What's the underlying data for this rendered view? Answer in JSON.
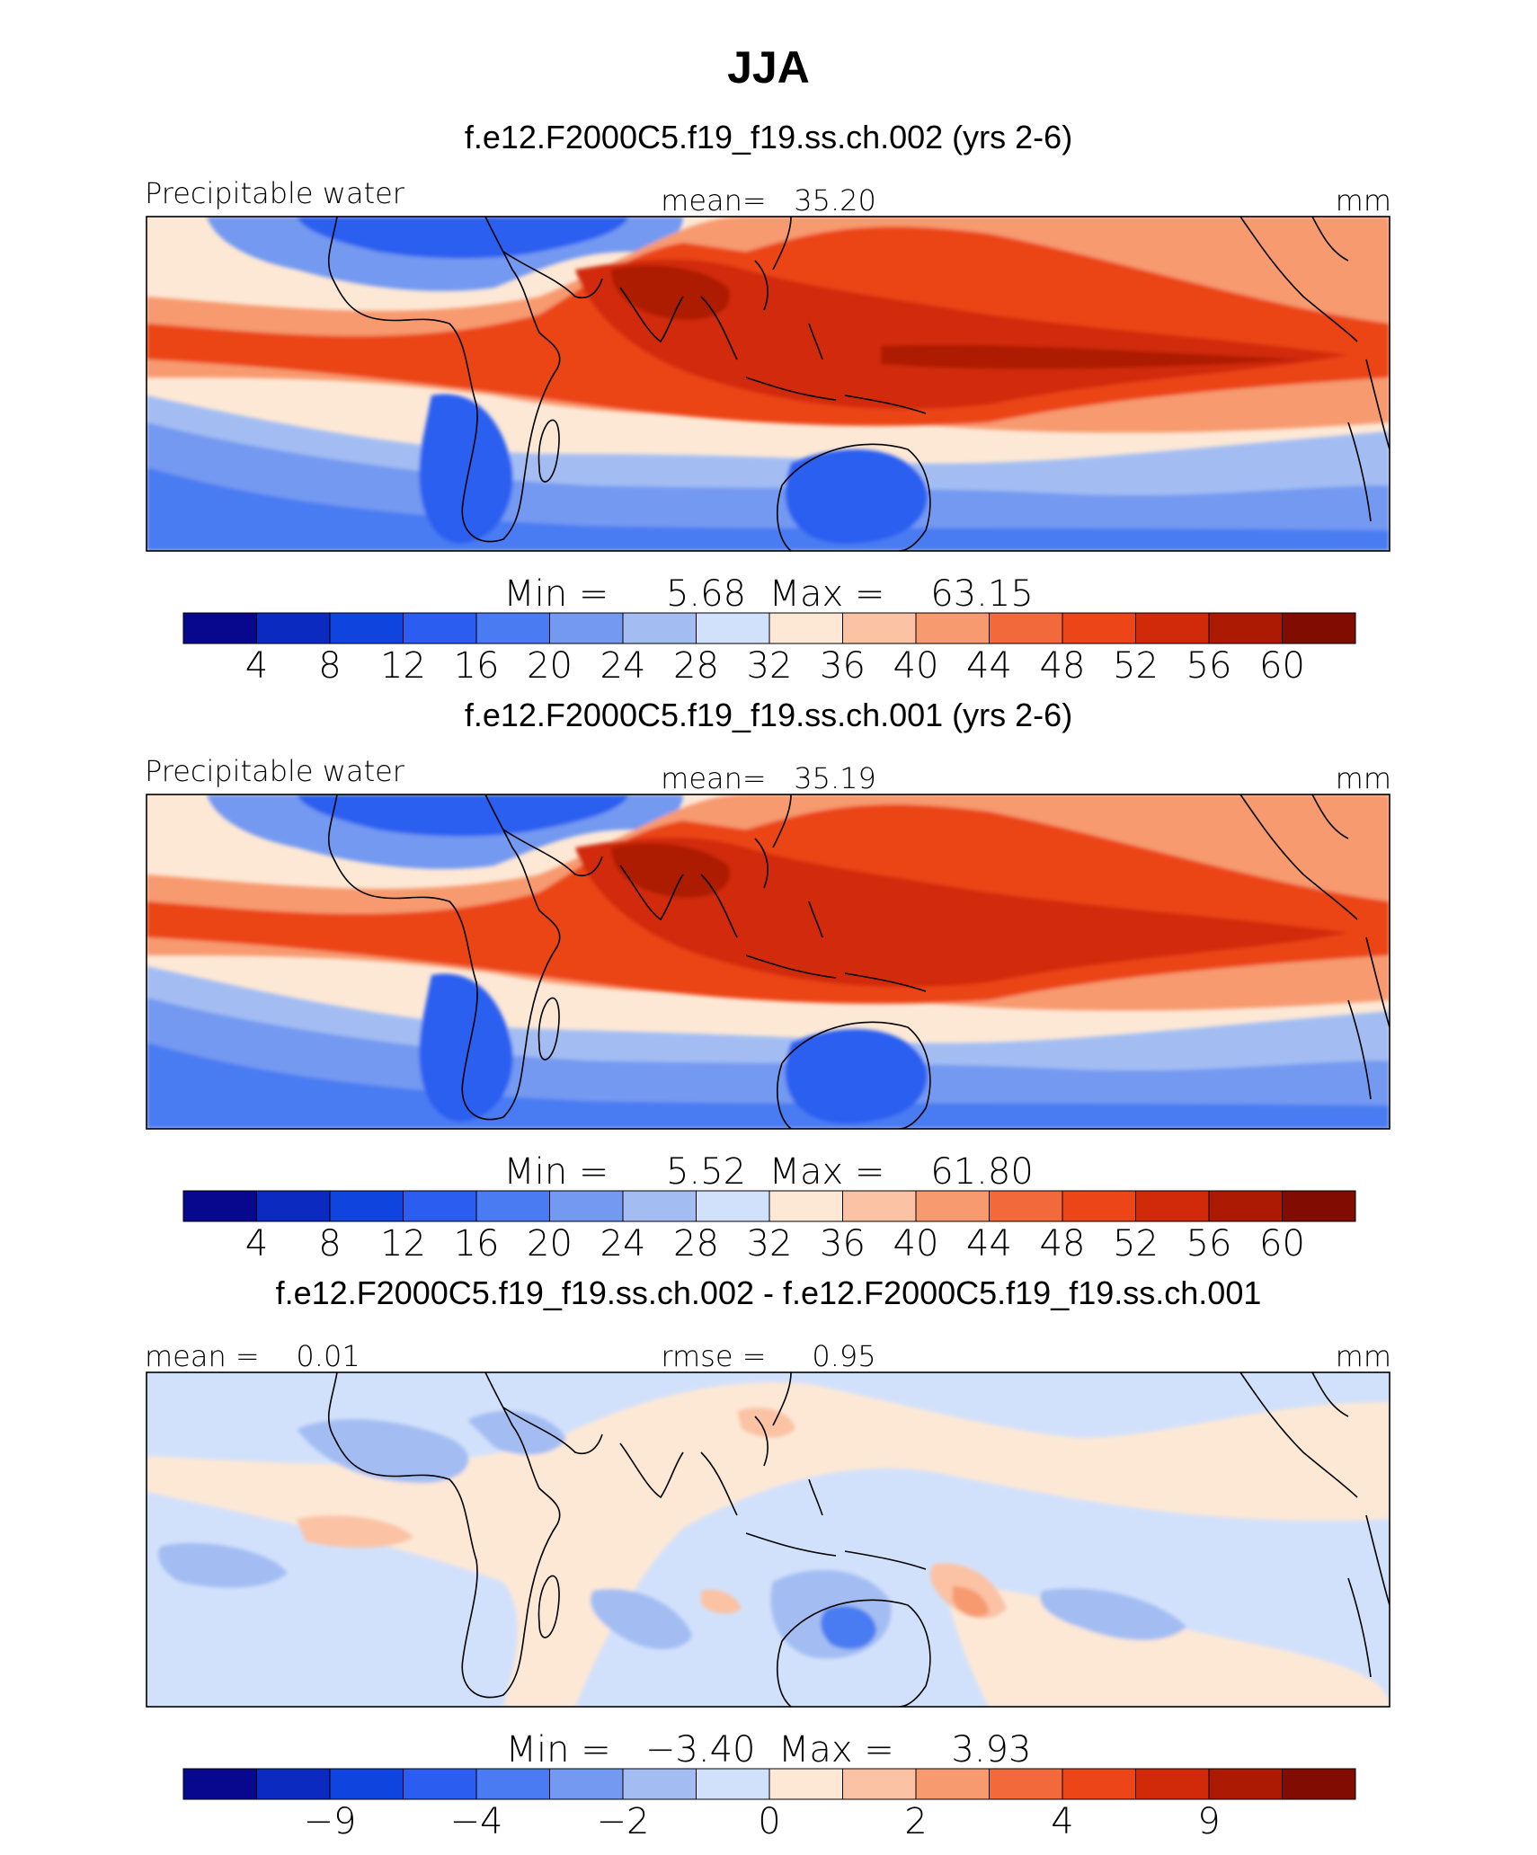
{
  "page": {
    "season_title": "JJA"
  },
  "colors": {
    "palette_13": [
      "#08088e",
      "#0b2bc0",
      "#0f45de",
      "#2b5ef0",
      "#4a7bf2",
      "#7399f1",
      "#a3bdf3",
      "#d2e1fb",
      "#fde8d6",
      "#fbc2a4",
      "#f79a6f",
      "#f26a3b",
      "#eb4518",
      "#d12a0a",
      "#ad1a04",
      "#810d02"
    ],
    "palette_diff": [
      "#08088e",
      "#0b2bc0",
      "#0f45de",
      "#2b5ef0",
      "#4a7bf2",
      "#7399f1",
      "#a3bdf3",
      "#d2e1fb",
      "#fde8d6",
      "#fbc2a4",
      "#f79a6f",
      "#f26a3b",
      "#eb4518",
      "#d12a0a",
      "#ad1a04",
      "#810d02"
    ],
    "coast": "#000000"
  },
  "chart_data": [
    {
      "type": "heatmap",
      "title": "f.e12.F2000C5.f19_f19.ss.ch.002 (yrs 2-6)",
      "left_label": "Precipitable water",
      "center_label": "mean=   35.20",
      "right_label": "mm",
      "min_max_label": "Min =     5.68  Max =    63.15",
      "min": 5.68,
      "max": 63.15,
      "mean": 35.2,
      "units": "mm",
      "colorbar_ticks": [
        "4",
        "8",
        "12",
        "16",
        "20",
        "24",
        "28",
        "32",
        "36",
        "40",
        "44",
        "48",
        "52",
        "56",
        "60"
      ],
      "levels": [
        4,
        8,
        12,
        16,
        20,
        24,
        28,
        32,
        36,
        40,
        44,
        48,
        52,
        56,
        60
      ]
    },
    {
      "type": "heatmap",
      "title": "f.e12.F2000C5.f19_f19.ss.ch.001 (yrs 2-6)",
      "left_label": "Precipitable water",
      "center_label": "mean=   35.19",
      "right_label": "mm",
      "min_max_label": "Min =     5.52  Max =    61.80",
      "min": 5.52,
      "max": 61.8,
      "mean": 35.19,
      "units": "mm",
      "colorbar_ticks": [
        "4",
        "8",
        "12",
        "16",
        "20",
        "24",
        "28",
        "32",
        "36",
        "40",
        "44",
        "48",
        "52",
        "56",
        "60"
      ],
      "levels": [
        4,
        8,
        12,
        16,
        20,
        24,
        28,
        32,
        36,
        40,
        44,
        48,
        52,
        56,
        60
      ]
    },
    {
      "type": "heatmap",
      "title": "f.e12.F2000C5.f19_f19.ss.ch.002 - f.e12.F2000C5.f19_f19.ss.ch.001",
      "left_label": "mean =    0.01",
      "center_label": "rmse =     0.95",
      "right_label": "mm",
      "min_max_label": "Min =   −3.40  Max =     3.93",
      "min": -3.4,
      "max": 3.93,
      "mean": 0.01,
      "rmse": 0.95,
      "units": "mm",
      "colorbar_ticks": [
        "−9",
        "−4",
        "−2",
        "0",
        "2",
        "4",
        "9"
      ],
      "tick_index": [
        1,
        3,
        5,
        7,
        9,
        11,
        13
      ]
    }
  ]
}
